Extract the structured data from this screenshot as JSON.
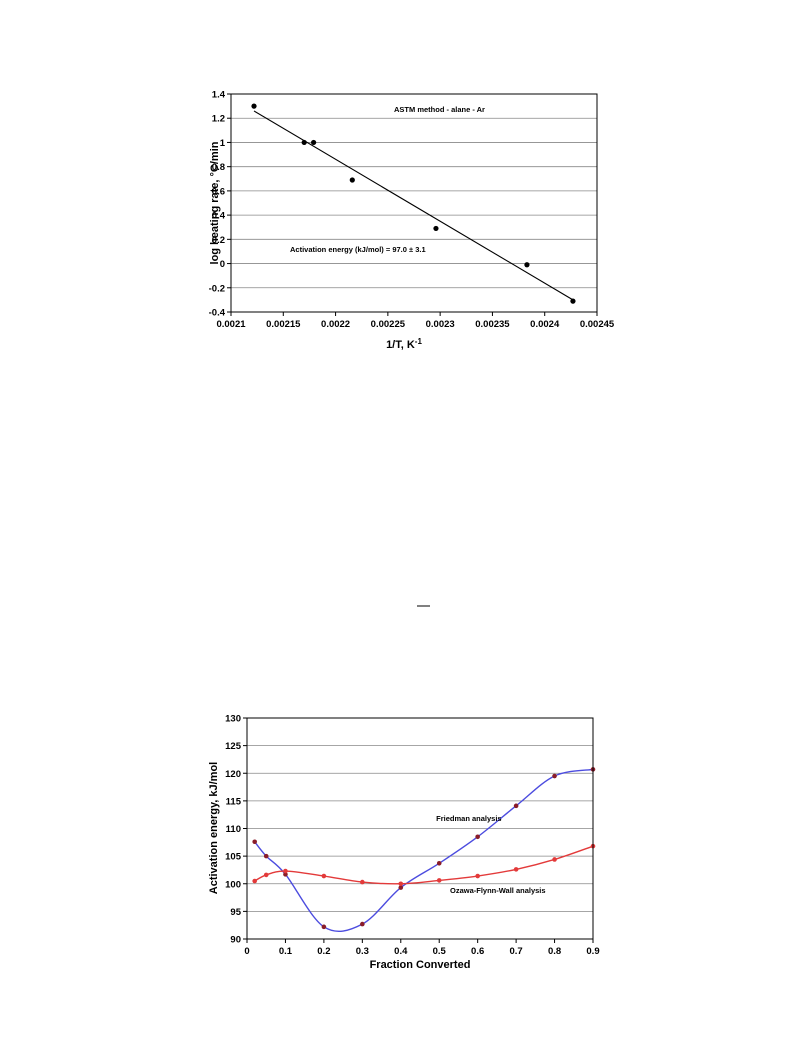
{
  "chart_data": [
    {
      "type": "scatter",
      "title": "",
      "xlabel": "1/T, K",
      "xlabel_sup": "-1",
      "ylabel": "log heating rate, °C/min",
      "xlim": [
        0.0021,
        0.00245
      ],
      "ylim": [
        -0.4,
        1.4
      ],
      "x_ticks": [
        "0.0021",
        "0.00215",
        "0.0022",
        "0.00225",
        "0.0023",
        "0.00235",
        "0.0024",
        "0.00245"
      ],
      "y_ticks": [
        "-0.4",
        "-0.2",
        "0",
        "0.2",
        "0.4",
        "0.6",
        "0.8",
        "1",
        "1.2",
        "1.4"
      ],
      "grid": "horizontal",
      "annotations": [
        "ASTM method - alane - Ar",
        "Activation energy (kJ/mol) = 97.0 ± 3.1"
      ],
      "series": [
        {
          "x": [
            0.002122,
            0.00217,
            0.002179,
            0.002216,
            0.002296,
            0.002383,
            0.002427
          ],
          "y": [
            1.3,
            1.0,
            1.0,
            0.69,
            0.29,
            -0.01,
            -0.31
          ],
          "color": "#000000"
        }
      ],
      "fit_line": {
        "x": [
          0.002122,
          0.002427
        ],
        "y": [
          1.26,
          -0.3
        ],
        "color": "#000000"
      }
    },
    {
      "type": "line",
      "title": "",
      "xlabel": "Fraction Converted",
      "ylabel": "Activation energy, kJ/mol",
      "xlim": [
        0,
        0.9
      ],
      "ylim": [
        90,
        130
      ],
      "x_ticks": [
        "0",
        "0.1",
        "0.2",
        "0.3",
        "0.4",
        "0.5",
        "0.6",
        "0.7",
        "0.8",
        "0.9"
      ],
      "y_ticks": [
        "90",
        "95",
        "100",
        "105",
        "110",
        "115",
        "120",
        "125",
        "130"
      ],
      "grid": "horizontal",
      "series": [
        {
          "name": "Friedman analysis",
          "x": [
            0.02,
            0.05,
            0.1,
            0.2,
            0.3,
            0.4,
            0.5,
            0.6,
            0.7,
            0.8,
            0.9
          ],
          "y": [
            107.6,
            105.0,
            101.7,
            92.2,
            92.7,
            99.3,
            103.7,
            108.5,
            114.1,
            119.5,
            120.7
          ],
          "color": "#4c4cdf",
          "marker": "#8a1d2a"
        },
        {
          "name": "Ozawa-Flynn-Wall analysis",
          "x": [
            0.02,
            0.05,
            0.1,
            0.2,
            0.3,
            0.4,
            0.5,
            0.6,
            0.7,
            0.8,
            0.9
          ],
          "y": [
            100.5,
            101.6,
            102.3,
            101.4,
            100.3,
            100.0,
            100.6,
            101.4,
            102.6,
            104.4,
            106.8
          ],
          "color": "#e33a3a",
          "marker": "#e33a3a"
        }
      ]
    }
  ]
}
